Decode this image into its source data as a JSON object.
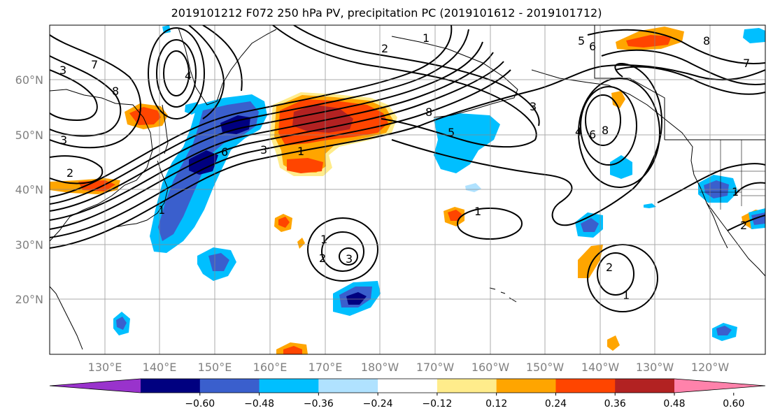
{
  "title": "2019101212 F072 250 hPa PV, precipitation PC (2019101612 - 2019101712)",
  "map": {
    "lon_labels": [
      "130°E",
      "140°E",
      "150°E",
      "160°E",
      "170°E",
      "180°W",
      "170°W",
      "160°W",
      "150°W",
      "140°W",
      "130°W",
      "120°W"
    ],
    "lat_labels": [
      "60°N",
      "50°N",
      "40°N",
      "30°N",
      "20°N"
    ],
    "pv_contour_labels": [
      "1",
      "2",
      "3",
      "4",
      "5",
      "6",
      "7",
      "8"
    ],
    "gridlines": true
  },
  "colorbar": {
    "tick_labels": [
      "−0.60",
      "−0.48",
      "−0.36",
      "−0.24",
      "−0.12",
      "0.12",
      "0.24",
      "0.36",
      "0.48",
      "0.60"
    ],
    "colors": [
      "#9933cc",
      "#000080",
      "#3a5fcd",
      "#00bfff",
      "#b0e2ff",
      "#ffffff",
      "#ffec8b",
      "#ffa500",
      "#ff4500",
      "#b22222",
      "#ff82ab"
    ]
  }
}
